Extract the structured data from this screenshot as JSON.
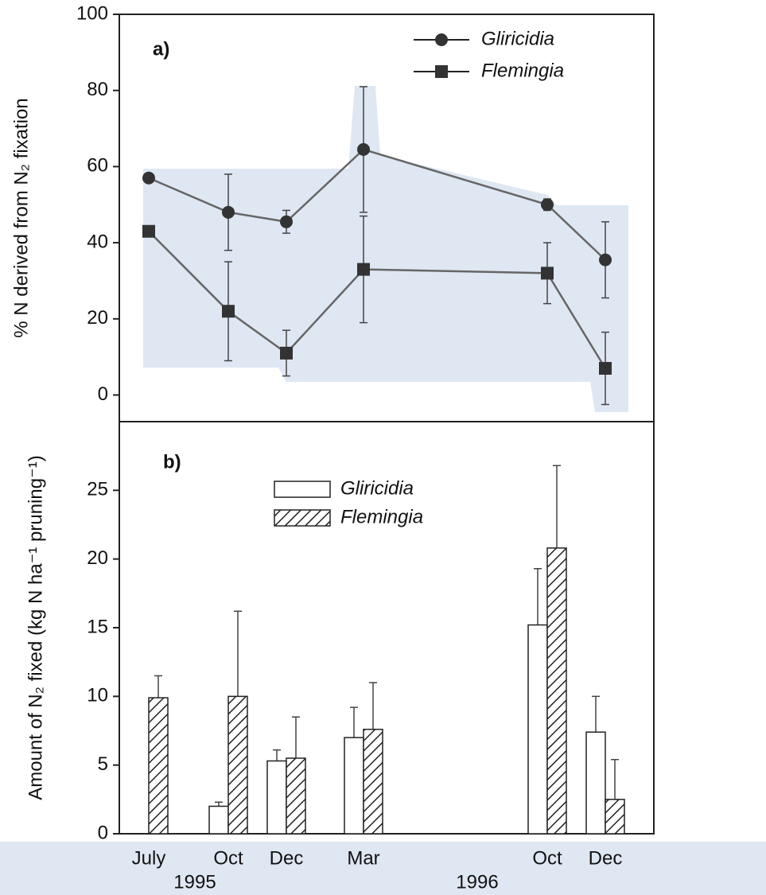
{
  "chart_data": [
    {
      "type": "line",
      "panel_label": "a)",
      "y_label": "% N derived from N₂ fixation",
      "ylim": [
        -7,
        100
      ],
      "yticks": [
        0,
        20,
        40,
        60,
        80,
        100
      ],
      "legend": "upper right",
      "series": [
        {
          "name": "Gliricidia",
          "color": "#333333",
          "marker": "circle",
          "values": [
            57,
            48,
            45.5,
            64.5,
            50,
            35.5
          ],
          "errors": [
            null,
            10,
            3,
            16.5,
            1.5,
            10
          ]
        },
        {
          "name": "Flemingia",
          "color": "#333333",
          "marker": "square",
          "values": [
            43,
            22,
            11,
            33,
            32,
            7
          ],
          "errors": [
            null,
            13,
            6,
            14,
            8,
            9.5
          ]
        }
      ]
    },
    {
      "type": "bar",
      "panel_label": "b)",
      "y_label": "Amount of N₂ fixed (kg N ha⁻¹ pruning⁻¹)",
      "categories": [
        "July",
        "Oct",
        "Dec",
        "Mar",
        "Oct",
        "Dec"
      ],
      "year_labels": [
        "1995",
        "1996"
      ],
      "ylim": [
        0,
        30
      ],
      "yticks": [
        0,
        5,
        10,
        15,
        20,
        25
      ],
      "legend": "upper center",
      "series": [
        {
          "name": "Gliricidia",
          "color": "#ffffff",
          "pattern": "none",
          "values": [
            null,
            2,
            5.3,
            7,
            15.2,
            7.4
          ],
          "errors": [
            null,
            0.3,
            0.8,
            2.2,
            4.1,
            2.6
          ]
        },
        {
          "name": "Flemingia",
          "color": "#ffffff",
          "pattern": "hatch",
          "values": [
            9.9,
            10,
            5.5,
            7.6,
            20.8,
            2.5
          ],
          "errors": [
            1.6,
            6.2,
            3,
            3.4,
            6,
            2.9
          ]
        }
      ]
    }
  ]
}
